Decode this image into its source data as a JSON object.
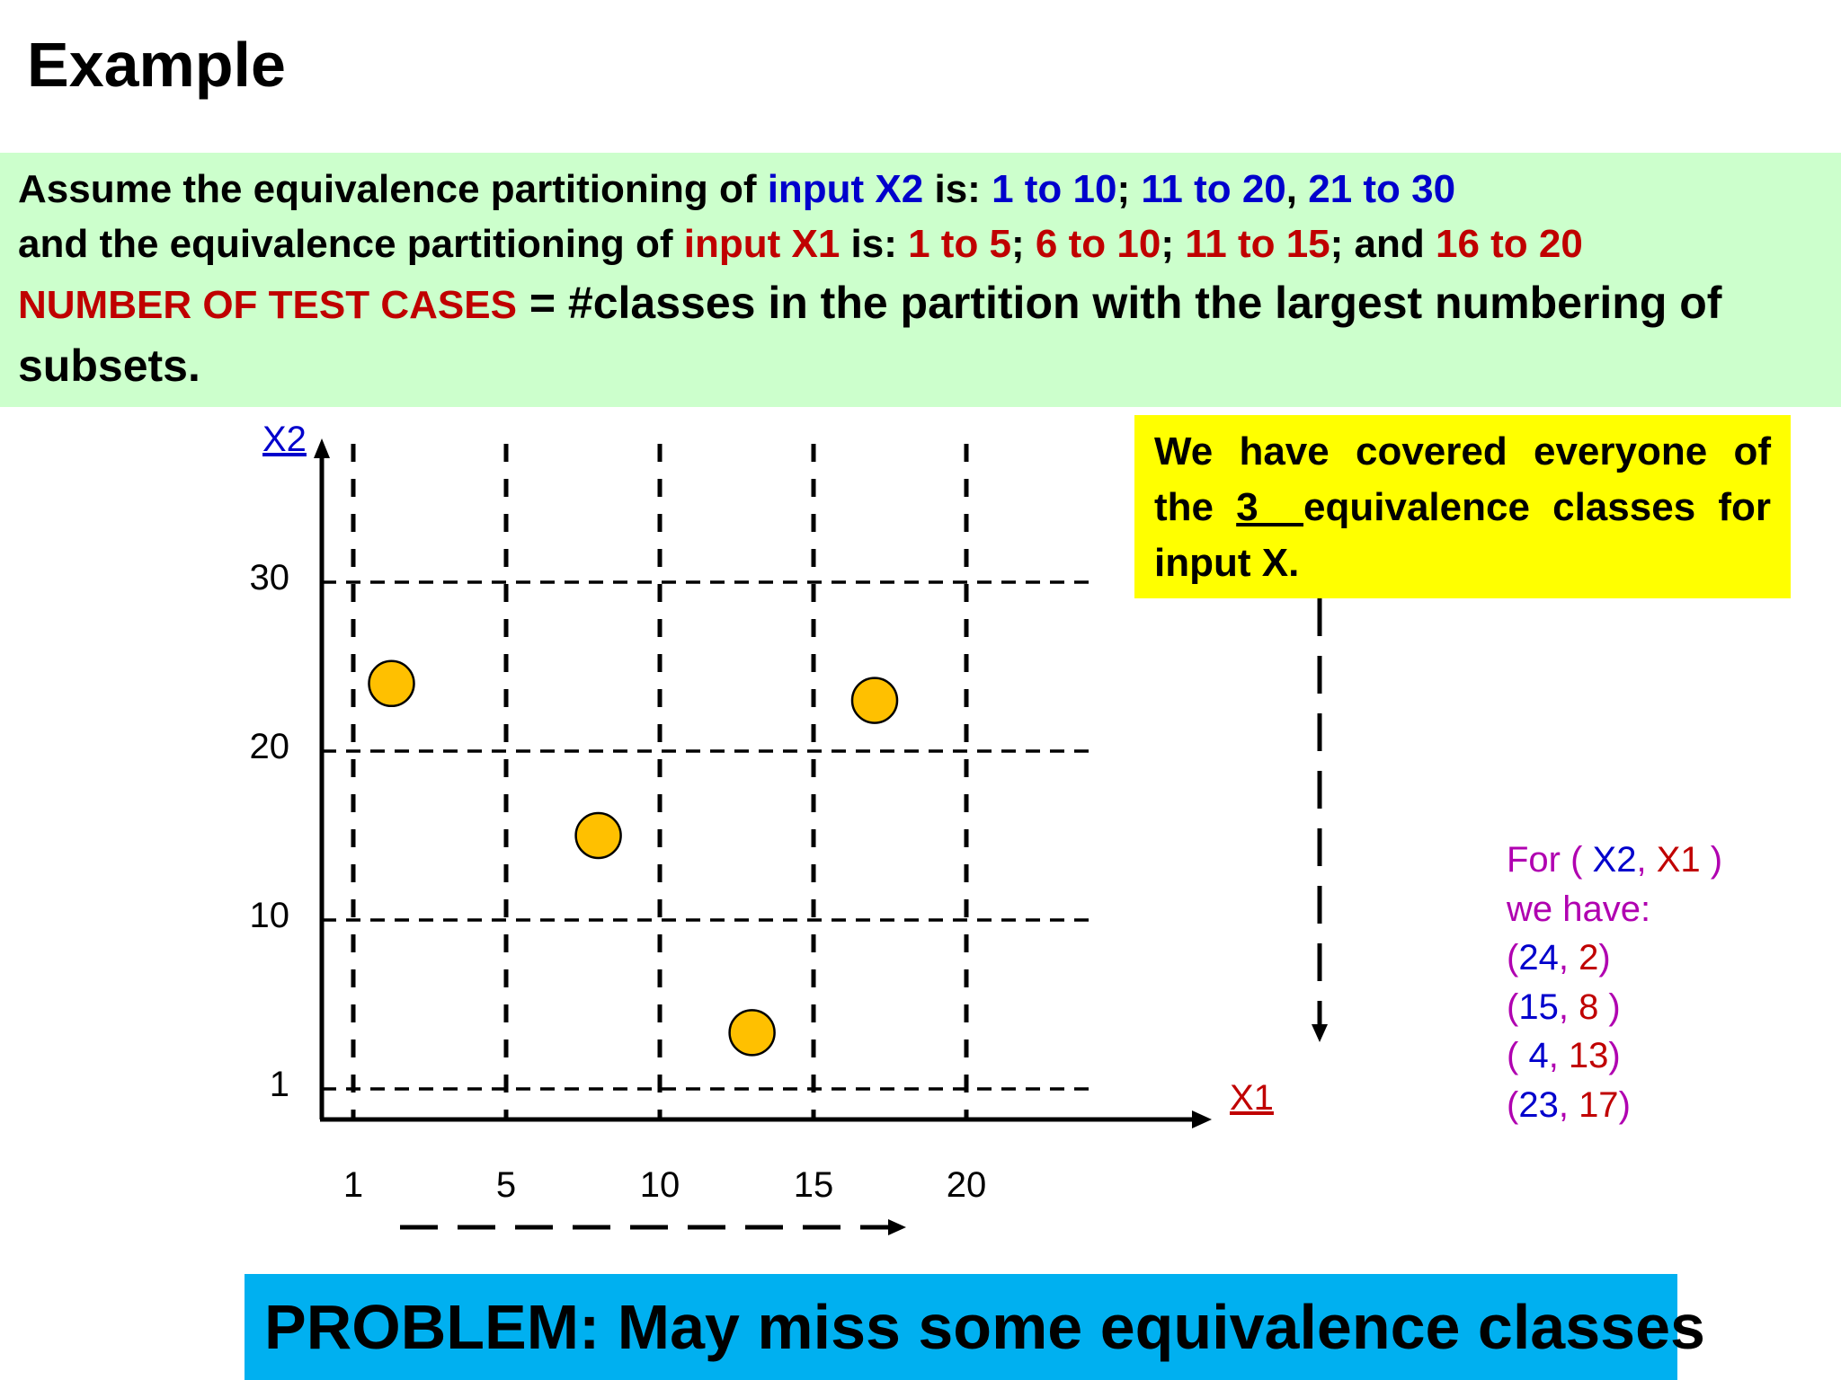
{
  "title": "Example",
  "assumption": {
    "line1": {
      "a": "Assume the equivalence partitioning of ",
      "b": "input X2",
      "c": " is:  ",
      "d": "1 to 10",
      "e": "; ",
      "f": "11 to 20",
      "g": ", ",
      "h": "21 to 30"
    },
    "line2": {
      "a": "and the equivalence partitioning of ",
      "b": "input X1",
      "c": " is: ",
      "d": "1 to 5",
      "e": "; ",
      "f": "6 to 10",
      "g": "; ",
      "h": "11 to 15",
      "i": "; and ",
      "j": "16 to 20"
    },
    "line3": {
      "a": "NUMBER OF TEST CASES",
      "b": "  = #classes in the partition with the largest numbering of"
    },
    "line4": "subsets."
  },
  "note": {
    "a": "We have covered everyone of the ",
    "b": "3  ",
    "c": "equivalence classes for input X."
  },
  "legend": {
    "line1": {
      "a": "For ( ",
      "b": "X2",
      "c": ", ",
      "d": "X1",
      "e": " )"
    },
    "line2": "we have:",
    "pairs": [
      {
        "open": "(",
        "x2": "24",
        "sep": ", ",
        "x1": "2",
        "close": ")"
      },
      {
        "open": "(",
        "x2": "15",
        "sep": ", ",
        "x1": "8 ",
        "close": ")"
      },
      {
        "open": "( ",
        "x2": "4",
        "sep": ", ",
        "x1": "13",
        "close": ")"
      },
      {
        "open": "(",
        "x2": "23",
        "sep": ", ",
        "x1": "17",
        "close": ")"
      }
    ]
  },
  "problem": "PROBLEM: May miss some equivalence classes",
  "colors": {
    "green_box": "#ccffcc",
    "yellow_box": "#ffff00",
    "problem_box": "#00b0f0",
    "blue": "#0000cc",
    "red": "#c00000",
    "magenta": "#b000b0",
    "point": "#ffc000"
  },
  "chart_data": {
    "type": "scatter",
    "xlabel": "X1",
    "ylabel": "X2",
    "x_ticks": [
      "1",
      "5",
      "10",
      "15",
      "20"
    ],
    "y_ticks": [
      "1",
      "10",
      "20",
      "30"
    ],
    "points": [
      {
        "x1": 2,
        "x2": 24
      },
      {
        "x1": 8,
        "x2": 15
      },
      {
        "x1": 13,
        "x2": 4
      },
      {
        "x1": 17,
        "x2": 23
      }
    ]
  }
}
